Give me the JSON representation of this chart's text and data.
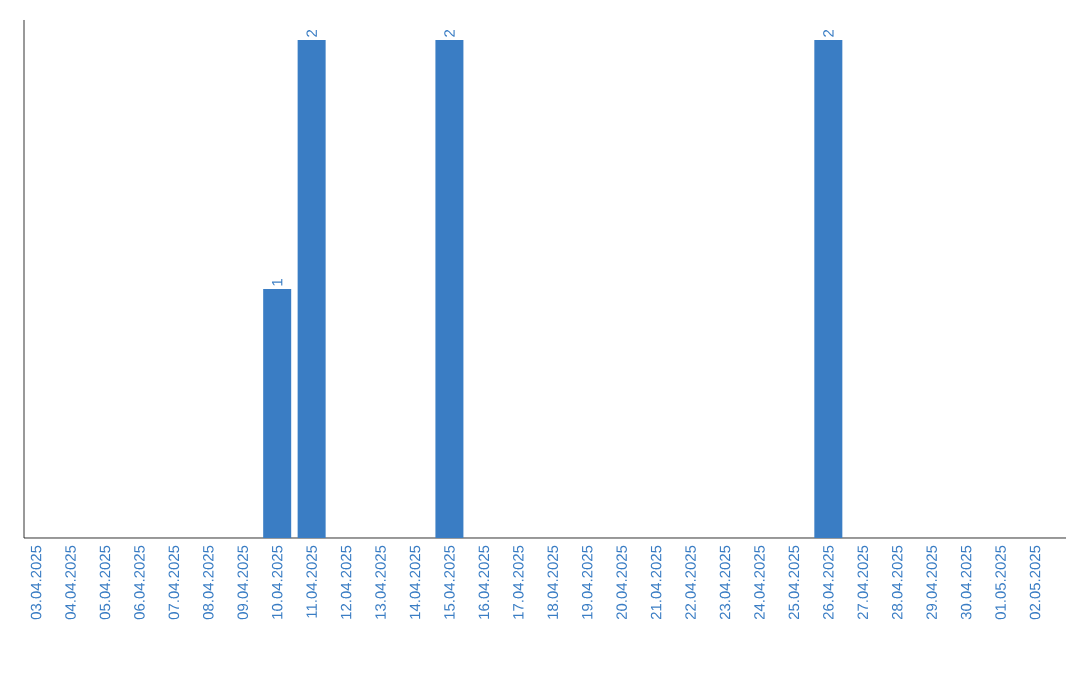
{
  "chart_data": {
    "type": "bar",
    "color": "#3a7dc4",
    "categories": [
      "03.04.2025",
      "04.04.2025",
      "05.04.2025",
      "06.04.2025",
      "07.04.2025",
      "08.04.2025",
      "09.04.2025",
      "10.04.2025",
      "11.04.2025",
      "12.04.2025",
      "13.04.2025",
      "14.04.2025",
      "15.04.2025",
      "16.04.2025",
      "17.04.2025",
      "18.04.2025",
      "19.04.2025",
      "20.04.2025",
      "21.04.2025",
      "22.04.2025",
      "23.04.2025",
      "24.04.2025",
      "25.04.2025",
      "26.04.2025",
      "27.04.2025",
      "28.04.2025",
      "29.04.2025",
      "30.04.2025",
      "01.05.2025",
      "02.05.2025"
    ],
    "values": [
      0,
      0,
      0,
      0,
      0,
      0,
      0,
      1,
      2,
      0,
      0,
      0,
      2,
      0,
      0,
      0,
      0,
      0,
      0,
      0,
      0,
      0,
      0,
      2,
      0,
      0,
      0,
      0,
      0,
      0
    ],
    "value_labels": [
      null,
      null,
      null,
      null,
      null,
      null,
      null,
      "1",
      "2",
      null,
      null,
      null,
      "2",
      null,
      null,
      null,
      null,
      null,
      null,
      null,
      null,
      null,
      null,
      "2",
      null,
      null,
      null,
      null,
      null,
      null
    ],
    "tick_labels": "x"
  }
}
